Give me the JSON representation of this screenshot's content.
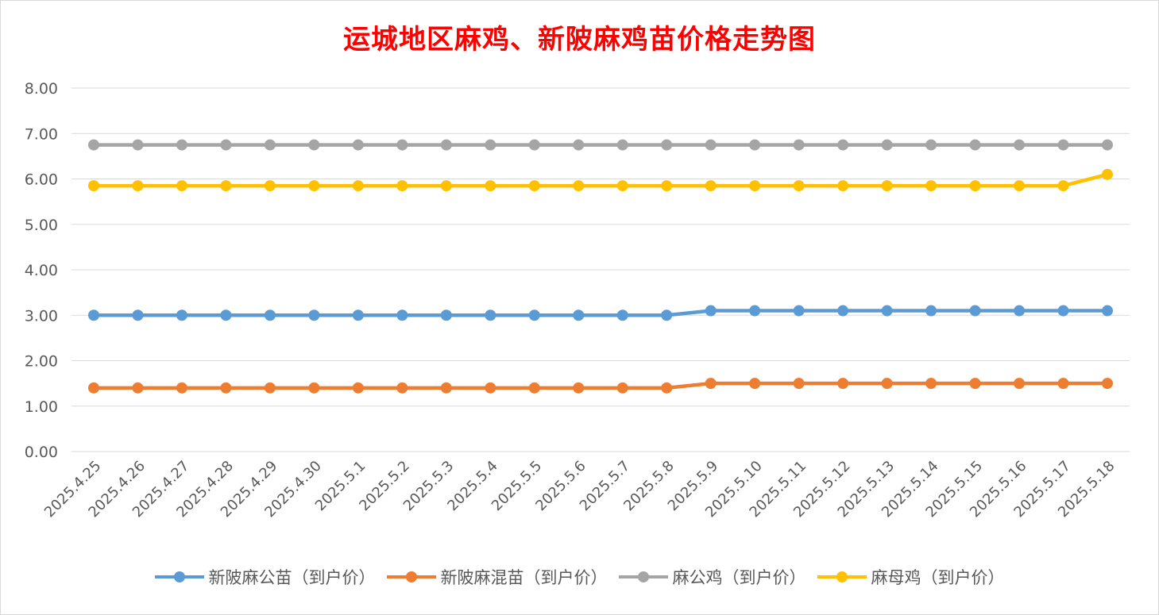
{
  "chart_data": {
    "type": "line",
    "title": "运城地区麻鸡、新陂麻鸡苗价格走势图",
    "categories": [
      "2025.4.25",
      "2025.4.26",
      "2025.4.27",
      "2025.4.28",
      "2025.4.29",
      "2025.4.30",
      "2025.5.1",
      "2025.5.2",
      "2025.5.3",
      "2025.5.4",
      "2025.5.5",
      "2025.5.6",
      "2025.5.7",
      "2025.5.8",
      "2025.5.9",
      "2025.5.10",
      "2025.5.11",
      "2025.5.12",
      "2025.5.13",
      "2025.5.14",
      "2025.5.15",
      "2025.5.16",
      "2025.5.17",
      "2025.5.18"
    ],
    "yticks": [
      "0.00",
      "1.00",
      "2.00",
      "3.00",
      "4.00",
      "5.00",
      "6.00",
      "7.00",
      "8.00"
    ],
    "ylim": [
      0,
      8
    ],
    "grid": true,
    "legend_position": "bottom",
    "series": [
      {
        "name": "新陂麻公苗（到户价）",
        "color": "#5b9bd5",
        "values": [
          3.0,
          3.0,
          3.0,
          3.0,
          3.0,
          3.0,
          3.0,
          3.0,
          3.0,
          3.0,
          3.0,
          3.0,
          3.0,
          3.0,
          3.1,
          3.1,
          3.1,
          3.1,
          3.1,
          3.1,
          3.1,
          3.1,
          3.1,
          3.1
        ]
      },
      {
        "name": "新陂麻混苗（到户价）",
        "color": "#ed7d31",
        "values": [
          1.4,
          1.4,
          1.4,
          1.4,
          1.4,
          1.4,
          1.4,
          1.4,
          1.4,
          1.4,
          1.4,
          1.4,
          1.4,
          1.4,
          1.5,
          1.5,
          1.5,
          1.5,
          1.5,
          1.5,
          1.5,
          1.5,
          1.5,
          1.5
        ]
      },
      {
        "name": "麻公鸡（到户价）",
        "color": "#a5a5a5",
        "values": [
          6.75,
          6.75,
          6.75,
          6.75,
          6.75,
          6.75,
          6.75,
          6.75,
          6.75,
          6.75,
          6.75,
          6.75,
          6.75,
          6.75,
          6.75,
          6.75,
          6.75,
          6.75,
          6.75,
          6.75,
          6.75,
          6.75,
          6.75,
          6.75
        ]
      },
      {
        "name": "麻母鸡（到户价）",
        "color": "#ffc000",
        "values": [
          5.85,
          5.85,
          5.85,
          5.85,
          5.85,
          5.85,
          5.85,
          5.85,
          5.85,
          5.85,
          5.85,
          5.85,
          5.85,
          5.85,
          5.85,
          5.85,
          5.85,
          5.85,
          5.85,
          5.85,
          5.85,
          5.85,
          5.85,
          6.1
        ]
      }
    ]
  }
}
